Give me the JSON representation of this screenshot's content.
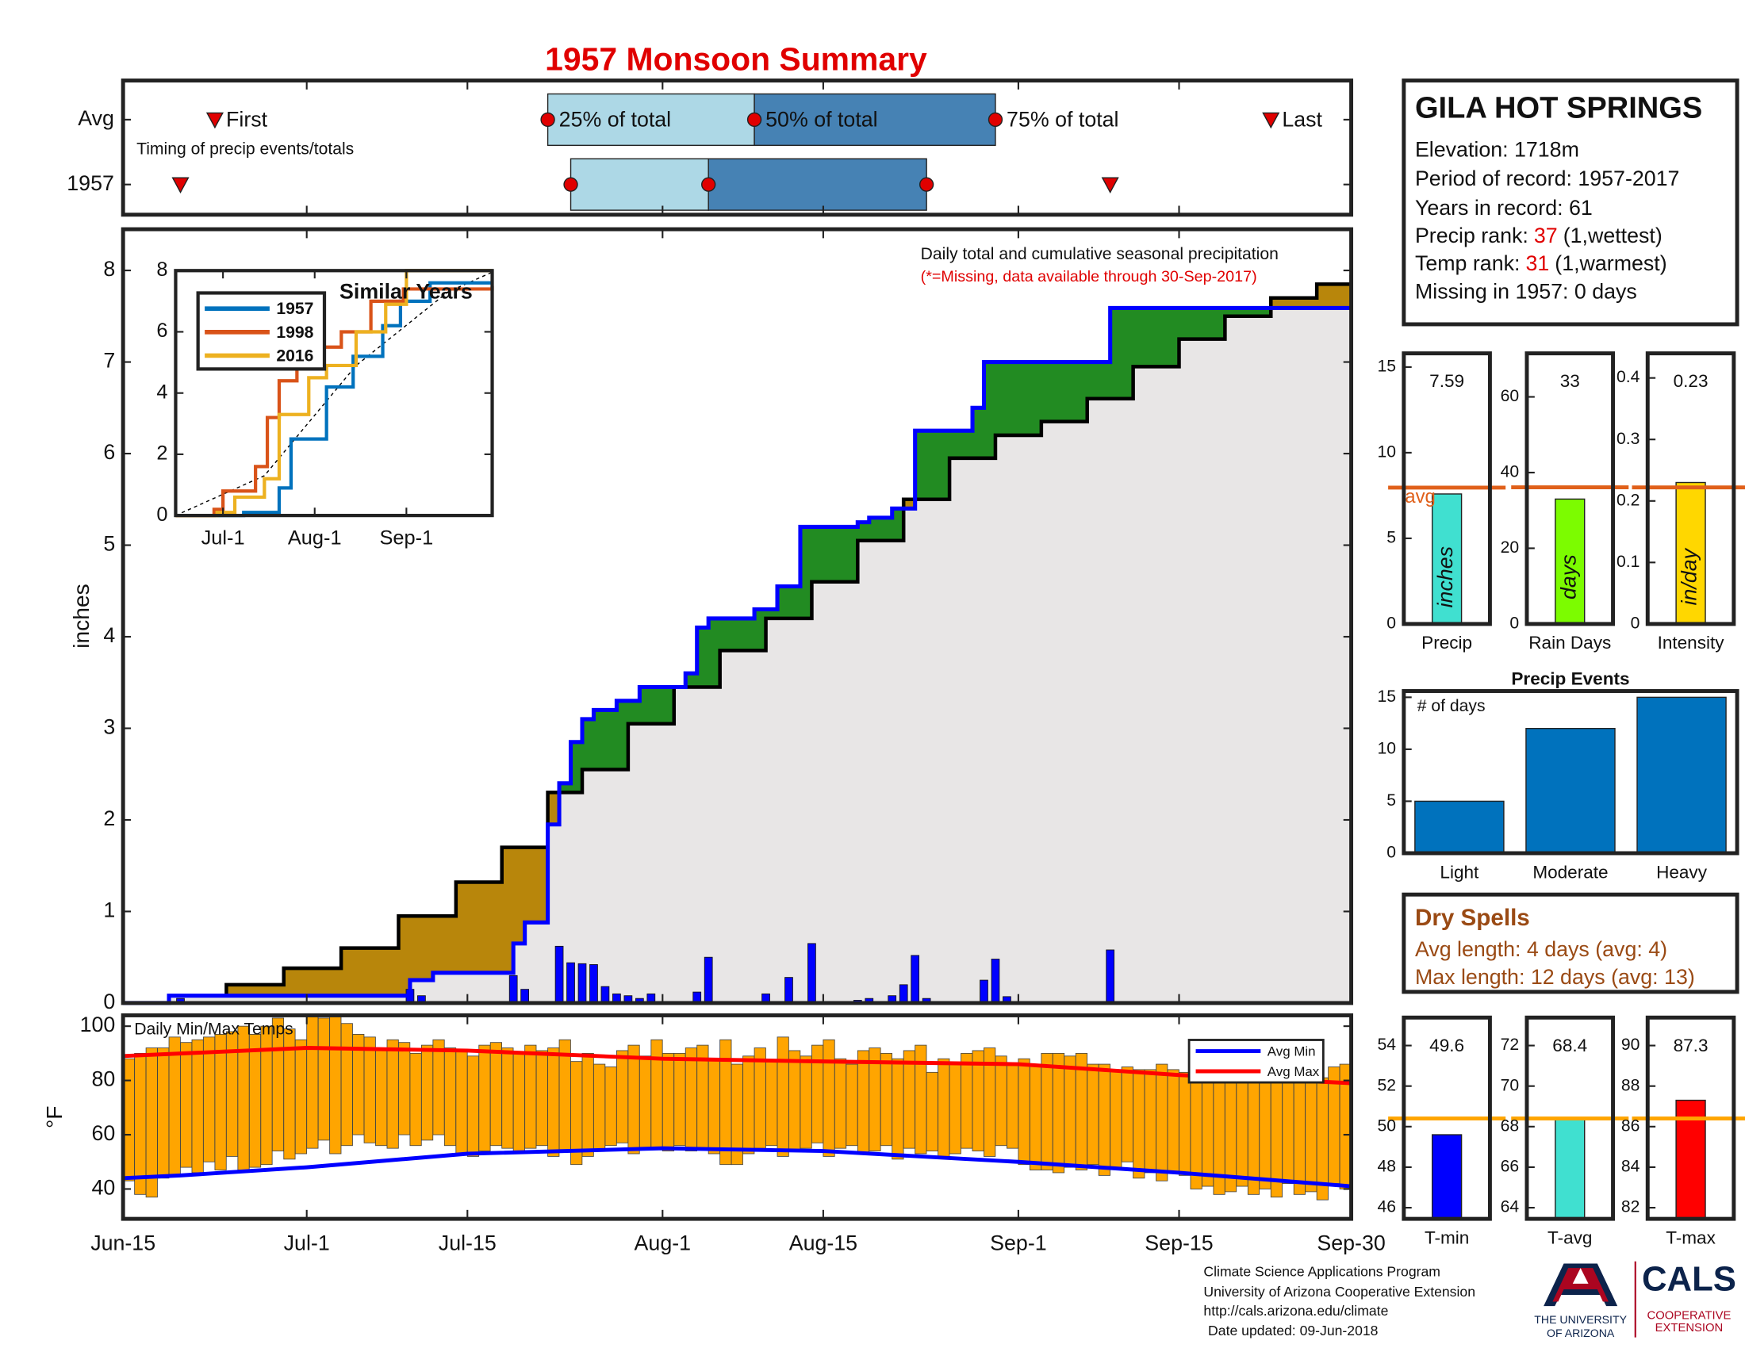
{
  "title": "1957 Monsoon Summary",
  "station": {
    "name": "GILA HOT SPRINGS",
    "elevation": "Elevation: 1718m",
    "period": "Period of record: 1957-2017",
    "years": "Years in record: 61",
    "precip_rank": {
      "label": "Precip rank:",
      "rank": 37,
      "note": "(1,wettest)"
    },
    "temp_rank": {
      "label": "Temp rank:",
      "rank": 31,
      "note": "(1,warmest)"
    },
    "missing": "Missing in 1957: 0 days"
  },
  "dry_spells": {
    "title": "Dry Spells",
    "avg_length": "Avg length: 4 days (avg: 4)",
    "max_length": "Max length: 12 days (avg: 13)",
    "color": "#9a4a14"
  },
  "footer": [
    "Climate Science Applications Program",
    "University of Arizona Cooperative Extension",
    "http://cals.arizona.edu/climate",
    "Date updated: 09-Jun-2018"
  ],
  "logo": {
    "university": [
      "THE UNIVERSITY",
      "OF ARIZONA"
    ],
    "cals": "CALS",
    "extension": [
      "COOPERATIVE",
      "EXTENSION"
    ]
  },
  "chart_data": [
    {
      "type": "timing",
      "note": "Timing of precip events/totals",
      "xlim": [
        "Jun-15",
        "Sep-30"
      ],
      "rows": [
        {
          "name": "Avg",
          "first": "Jun-23",
          "q25": "Jul-22",
          "q50": "Aug-9",
          "q75": "Aug-30",
          "last": "Sep-23",
          "labels": {
            "first": "First",
            "q25": "25% of total",
            "q50": "50% of total",
            "q75": "75% of total",
            "last": "Last"
          }
        },
        {
          "name": "1957",
          "first": "Jun-20",
          "q25": "Jul-24",
          "q50": "Aug-5",
          "q75": "Aug-24",
          "last": "Sep-9"
        }
      ],
      "colors": {
        "early": "#add8e6",
        "late": "#4682b4",
        "marker": "#e00000"
      }
    },
    {
      "type": "cumulative",
      "ylabel": "inches",
      "annotations": [
        "Daily total and cumulative seasonal precipitation",
        "(*=Missing, data available through 30-Sep-2017)"
      ],
      "annotation_colors": [
        "#111111",
        "#e00000"
      ],
      "xlim": [
        "Jun-15",
        "Sep-30"
      ],
      "ylim": [
        0,
        8.45
      ],
      "yticks": [
        0,
        1,
        2,
        3,
        4,
        5,
        6,
        7,
        8
      ],
      "above_color": "#228b22",
      "below_color": "#b8860b",
      "base_color": "#e8e6e6",
      "observed": {
        "color": "#0000ff",
        "x": [
          "Jun-15",
          "Jun-19",
          "Jul-10",
          "Jul-12",
          "Jul-19",
          "Jul-20",
          "Jul-22",
          "Jul-23",
          "Jul-24",
          "Jul-25",
          "Jul-26",
          "Jul-28",
          "Jul-30",
          "Aug-3",
          "Aug-4",
          "Aug-5",
          "Aug-9",
          "Aug-11",
          "Aug-13",
          "Aug-18",
          "Aug-19",
          "Aug-21",
          "Aug-23",
          "Aug-28",
          "Aug-29",
          "Sep-9",
          "Sep-30"
        ],
        "values": [
          0,
          0.08,
          0.25,
          0.33,
          0.65,
          0.88,
          1.95,
          2.4,
          2.85,
          3.1,
          3.2,
          3.3,
          3.45,
          3.6,
          4.1,
          4.2,
          4.3,
          4.55,
          5.2,
          5.25,
          5.3,
          5.4,
          6.25,
          6.5,
          7.0,
          7.59,
          7.59
        ]
      },
      "average": {
        "color": "#000000",
        "x": [
          "Jun-15",
          "Jun-19",
          "Jun-24",
          "Jun-29",
          "Jul-4",
          "Jul-9",
          "Jul-14",
          "Jul-18",
          "Jul-22",
          "Jul-25",
          "Jul-29",
          "Aug-2",
          "Aug-6",
          "Aug-10",
          "Aug-14",
          "Aug-18",
          "Aug-22",
          "Aug-26",
          "Aug-30",
          "Sep-3",
          "Sep-7",
          "Sep-11",
          "Sep-15",
          "Sep-19",
          "Sep-23",
          "Sep-27",
          "Sep-30"
        ],
        "values": [
          0,
          0.08,
          0.2,
          0.38,
          0.6,
          0.95,
          1.32,
          1.7,
          2.3,
          2.55,
          3.05,
          3.45,
          3.85,
          4.2,
          4.6,
          5.05,
          5.5,
          5.95,
          6.2,
          6.35,
          6.6,
          6.95,
          7.25,
          7.5,
          7.7,
          7.85,
          7.95
        ]
      },
      "daily": {
        "color": "#0000ff",
        "x": [
          "Jun-20",
          "Jul-10",
          "Jul-11",
          "Jul-19",
          "Jul-20",
          "Jul-23",
          "Jul-24",
          "Jul-25",
          "Jul-26",
          "Jul-27",
          "Jul-28",
          "Jul-29",
          "Jul-30",
          "Jul-31",
          "Aug-4",
          "Aug-5",
          "Aug-10",
          "Aug-12",
          "Aug-14",
          "Aug-18",
          "Aug-19",
          "Aug-21",
          "Aug-22",
          "Aug-23",
          "Aug-24",
          "Aug-29",
          "Aug-30",
          "Aug-31",
          "Sep-9"
        ],
        "values": [
          0.05,
          0.15,
          0.08,
          0.3,
          0.15,
          0.62,
          0.44,
          0.43,
          0.42,
          0.18,
          0.1,
          0.08,
          0.05,
          0.1,
          0.12,
          0.5,
          0.1,
          0.28,
          0.65,
          0.03,
          0.05,
          0.08,
          0.2,
          0.52,
          0.05,
          0.25,
          0.48,
          0.07,
          0.58
        ]
      }
    },
    {
      "type": "line",
      "step": true,
      "title": "Similar Years",
      "xlim": [
        "Jun-15",
        "Sep-30"
      ],
      "xticks": [
        "Jul-1",
        "Aug-1",
        "Sep-1"
      ],
      "ylim": [
        0,
        8
      ],
      "yticks": [
        0,
        2,
        4,
        6,
        8
      ],
      "legend": "upper left",
      "average": {
        "color": "#000000",
        "x": [
          "Jun-15",
          "Jul-15",
          "Aug-15",
          "Sep-15",
          "Sep-30"
        ],
        "values": [
          0,
          1.3,
          4.9,
          7.3,
          7.95
        ]
      },
      "series": [
        {
          "name": "1957",
          "color": "#0072bd",
          "x": [
            "Jun-15",
            "Jul-8",
            "Jul-20",
            "Jul-24",
            "Aug-5",
            "Aug-14",
            "Aug-24",
            "Aug-30",
            "Sep-9",
            "Sep-30"
          ],
          "values": [
            0,
            0.1,
            0.9,
            2.5,
            4.2,
            5.2,
            6.2,
            7.0,
            7.6,
            7.6
          ]
        },
        {
          "name": "1998",
          "color": "#d95319",
          "x": [
            "Jun-15",
            "Jun-28",
            "Jul-1",
            "Jul-12",
            "Jul-16",
            "Jul-20",
            "Jul-26",
            "Aug-3",
            "Aug-10",
            "Aug-20",
            "Aug-31",
            "Sep-30"
          ],
          "values": [
            0,
            0.2,
            0.8,
            1.6,
            3.2,
            4.4,
            5.5,
            5.5,
            6.0,
            7.0,
            7.4,
            7.5
          ]
        },
        {
          "name": "2016",
          "color": "#edb120",
          "x": [
            "Jun-15",
            "Jun-29",
            "Jul-5",
            "Jul-15",
            "Jul-20",
            "Jul-30",
            "Aug-5",
            "Aug-15",
            "Aug-25",
            "Sep-1",
            "Sep-30"
          ],
          "values": [
            0,
            0.1,
            0.6,
            1.2,
            3.3,
            4.5,
            4.9,
            6.0,
            6.9,
            8.0,
            8.0
          ]
        }
      ]
    },
    {
      "type": "range-bar",
      "title": "Daily Min/Max Temps",
      "ylabel": "°F",
      "xlim": [
        "Jun-15",
        "Sep-30"
      ],
      "xticks": [
        "Jun-15",
        "Jul-1",
        "Jul-15",
        "Aug-1",
        "Aug-15",
        "Sep-1",
        "Sep-15",
        "Sep-30"
      ],
      "ylim": [
        29,
        104
      ],
      "yticks": [
        40,
        60,
        80,
        100
      ],
      "color": "#ffa500",
      "legend": "upper right",
      "x": [
        "Jun-15",
        "Jun-16",
        "Jun-17",
        "Jun-18",
        "Jun-19",
        "Jun-20",
        "Jun-21",
        "Jun-22",
        "Jun-23",
        "Jun-24",
        "Jun-25",
        "Jun-26",
        "Jun-27",
        "Jun-28",
        "Jun-29",
        "Jun-30",
        "Jul-1",
        "Jul-2",
        "Jul-3",
        "Jul-4",
        "Jul-5",
        "Jul-6",
        "Jul-7",
        "Jul-8",
        "Jul-9",
        "Jul-10",
        "Jul-11",
        "Jul-12",
        "Jul-13",
        "Jul-14",
        "Jul-15",
        "Jul-16",
        "Jul-17",
        "Jul-18",
        "Jul-19",
        "Jul-20",
        "Jul-21",
        "Jul-22",
        "Jul-23",
        "Jul-24",
        "Jul-25",
        "Jul-26",
        "Jul-27",
        "Jul-28",
        "Jul-29",
        "Jul-30",
        "Jul-31",
        "Aug-1",
        "Aug-2",
        "Aug-3",
        "Aug-4",
        "Aug-5",
        "Aug-6",
        "Aug-7",
        "Aug-8",
        "Aug-9",
        "Aug-10",
        "Aug-11",
        "Aug-12",
        "Aug-13",
        "Aug-14",
        "Aug-15",
        "Aug-16",
        "Aug-17",
        "Aug-18",
        "Aug-19",
        "Aug-20",
        "Aug-21",
        "Aug-22",
        "Aug-23",
        "Aug-24",
        "Aug-25",
        "Aug-26",
        "Aug-27",
        "Aug-28",
        "Aug-29",
        "Aug-30",
        "Aug-31",
        "Sep-1",
        "Sep-2",
        "Sep-3",
        "Sep-4",
        "Sep-5",
        "Sep-6",
        "Sep-7",
        "Sep-8",
        "Sep-9",
        "Sep-10",
        "Sep-11",
        "Sep-12",
        "Sep-13",
        "Sep-14",
        "Sep-15",
        "Sep-16",
        "Sep-17",
        "Sep-18",
        "Sep-19",
        "Sep-20",
        "Sep-21",
        "Sep-22",
        "Sep-23",
        "Sep-24",
        "Sep-25",
        "Sep-26",
        "Sep-27",
        "Sep-28",
        "Sep-29",
        "Sep-30"
      ],
      "high": [
        88,
        90,
        92,
        92,
        96,
        94,
        95,
        96,
        97,
        98,
        100,
        97,
        100,
        103,
        99,
        95,
        104,
        103,
        104,
        101,
        97,
        96,
        92,
        95,
        94,
        90,
        93,
        95,
        92,
        91,
        89,
        93,
        94,
        92,
        90,
        93,
        91,
        92,
        95,
        87,
        90,
        86,
        85,
        91,
        93,
        89,
        95,
        90,
        90,
        92,
        93,
        88,
        95,
        86,
        89,
        92,
        87,
        96,
        91,
        89,
        93,
        95,
        88,
        86,
        91,
        92,
        90,
        88,
        91,
        93,
        83,
        88,
        86,
        90,
        91,
        92,
        89,
        86,
        88,
        86,
        90,
        90,
        89,
        90,
        86,
        86,
        84,
        85,
        84,
        84,
        86,
        84,
        83,
        85,
        82,
        81,
        83,
        82,
        84,
        83,
        82,
        86,
        84,
        87,
        81,
        85,
        86,
        86
      ],
      "low": [
        43,
        38,
        37,
        44,
        45,
        48,
        46,
        50,
        47,
        52,
        47,
        48,
        49,
        54,
        51,
        53,
        55,
        58,
        53,
        56,
        60,
        57,
        56,
        55,
        60,
        56,
        58,
        60,
        56,
        53,
        52,
        54,
        56,
        55,
        54,
        55,
        56,
        52,
        54,
        49,
        52,
        54,
        56,
        57,
        53,
        55,
        55,
        54,
        56,
        54,
        55,
        53,
        49,
        49,
        53,
        55,
        56,
        52,
        54,
        55,
        57,
        52,
        55,
        56,
        53,
        54,
        56,
        51,
        55,
        53,
        54,
        52,
        53,
        55,
        54,
        52,
        56,
        55,
        49,
        47,
        47,
        46,
        48,
        47,
        49,
        45,
        48,
        50,
        44,
        46,
        43,
        46,
        45,
        40,
        41,
        38,
        39,
        41,
        38,
        40,
        37,
        42,
        38,
        39,
        36,
        42,
        40,
        43
      ],
      "series": [
        {
          "name": "Avg Min",
          "color": "#0000ff",
          "x": [
            "Jun-15",
            "Jun-20",
            "Jul-1",
            "Jul-15",
            "Aug-1",
            "Aug-15",
            "Sep-1",
            "Sep-15",
            "Sep-30"
          ],
          "values": [
            44,
            45,
            48,
            53,
            55,
            54,
            50,
            46,
            41
          ]
        },
        {
          "name": "Avg Max",
          "color": "#ff0000",
          "x": [
            "Jun-15",
            "Jul-1",
            "Jul-15",
            "Aug-1",
            "Aug-15",
            "Sep-1",
            "Sep-15",
            "Sep-30"
          ],
          "values": [
            89,
            92,
            91,
            88,
            87,
            86,
            82,
            79
          ]
        }
      ]
    },
    {
      "type": "stat-bar",
      "label": "Precip",
      "unit": "inches",
      "value": 7.59,
      "average": 7.96,
      "average_label": "avg",
      "color": "#40e0d0",
      "average_color": "#e0601a",
      "ylim": [
        0,
        15.8
      ],
      "yticks": [
        0,
        5,
        10,
        15
      ]
    },
    {
      "type": "stat-bar",
      "label": "Rain Days",
      "unit": "days",
      "value": 33,
      "average": 36.1,
      "color": "#7cfc00",
      "average_color": "#e0601a",
      "ylim": [
        0,
        71.5
      ],
      "yticks": [
        0,
        20,
        40,
        60
      ]
    },
    {
      "type": "stat-bar",
      "label": "Intensity",
      "unit": "in/day",
      "value": 0.23,
      "average": 0.222,
      "color": "#ffd700",
      "average_color": "#e0601a",
      "ylim": [
        0,
        0.44
      ],
      "yticks": [
        0,
        0.1,
        0.2,
        0.3,
        0.4
      ]
    },
    {
      "type": "bar",
      "title": "Precip Events",
      "note": "# of days",
      "categories": [
        "Light",
        "Moderate",
        "Heavy"
      ],
      "values": [
        5,
        12,
        15
      ],
      "color": "#0072bd",
      "ylim": [
        0,
        15.6
      ],
      "yticks": [
        0,
        5,
        10,
        15
      ]
    },
    {
      "type": "stat-bar",
      "label": "T-min",
      "value": 49.6,
      "average": 50.4,
      "color": "#0000ff",
      "average_color": "#ffa500",
      "ylim": [
        45.45,
        55.38
      ],
      "yticks": [
        46,
        48,
        50,
        52,
        54
      ]
    },
    {
      "type": "stat-bar",
      "label": "T-avg",
      "value": 68.4,
      "average": 68.4,
      "color": "#40e0d0",
      "average_color": "#ffa500",
      "ylim": [
        63.45,
        73.38
      ],
      "yticks": [
        64,
        66,
        68,
        70,
        72
      ]
    },
    {
      "type": "stat-bar",
      "label": "T-max",
      "value": 87.3,
      "average": 86.4,
      "color": "#ff0000",
      "average_color": "#ffa500",
      "ylim": [
        81.45,
        91.38
      ],
      "yticks": [
        82,
        84,
        86,
        88,
        90
      ]
    }
  ]
}
